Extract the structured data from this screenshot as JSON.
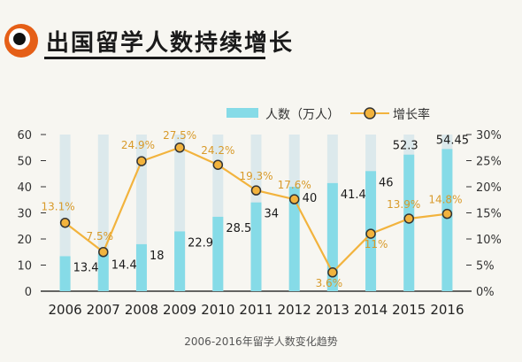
{
  "title": "出国留学人数持续增长",
  "caption": "2006-2016年留学人数变化趋势",
  "colors": {
    "bar": "#86dbe7",
    "bar_shadow": "#dce9ec",
    "line": "#f2b33d",
    "label_orange": "#d89a2a",
    "axis": "#333333",
    "icon": "#e55f17"
  },
  "chart_data": {
    "type": "bar",
    "categories": [
      "2006",
      "2007",
      "2008",
      "2009",
      "2010",
      "2011",
      "2012",
      "2013",
      "2014",
      "2015",
      "2016"
    ],
    "series": [
      {
        "name": "人数（万人）",
        "type": "bar",
        "axis": "left",
        "values": [
          13.4,
          14.4,
          18,
          22.9,
          28.5,
          34,
          40,
          41.4,
          46,
          52.3,
          54.45
        ],
        "labels": [
          "13.4",
          "14.4",
          "18",
          "22.9",
          "28.5",
          "34",
          "40",
          "41.4",
          "46",
          "52.3",
          "54.45"
        ]
      },
      {
        "name": "增长率",
        "type": "line",
        "axis": "right",
        "values": [
          13.1,
          7.5,
          24.9,
          27.5,
          24.2,
          19.3,
          17.6,
          3.6,
          11,
          13.9,
          14.8
        ],
        "labels": [
          "13.1%",
          "7.5%",
          "24.9%",
          "27.5%",
          "24.2%",
          "19.3%",
          "17.6%",
          "3.6%",
          "11%",
          "13.9%",
          "14.8%"
        ]
      }
    ],
    "y_left": {
      "min": 0,
      "max": 60,
      "ticks": [
        "0",
        "10",
        "20",
        "30",
        "40",
        "50",
        "60"
      ]
    },
    "y_right": {
      "min": 0,
      "max": 30,
      "ticks": [
        "0%",
        "5%",
        "10%",
        "15%",
        "20%",
        "25%",
        "30%"
      ]
    },
    "legend": {
      "position": "top-right",
      "entries": [
        "人数（万人）",
        "增长率"
      ]
    },
    "grid": false
  }
}
